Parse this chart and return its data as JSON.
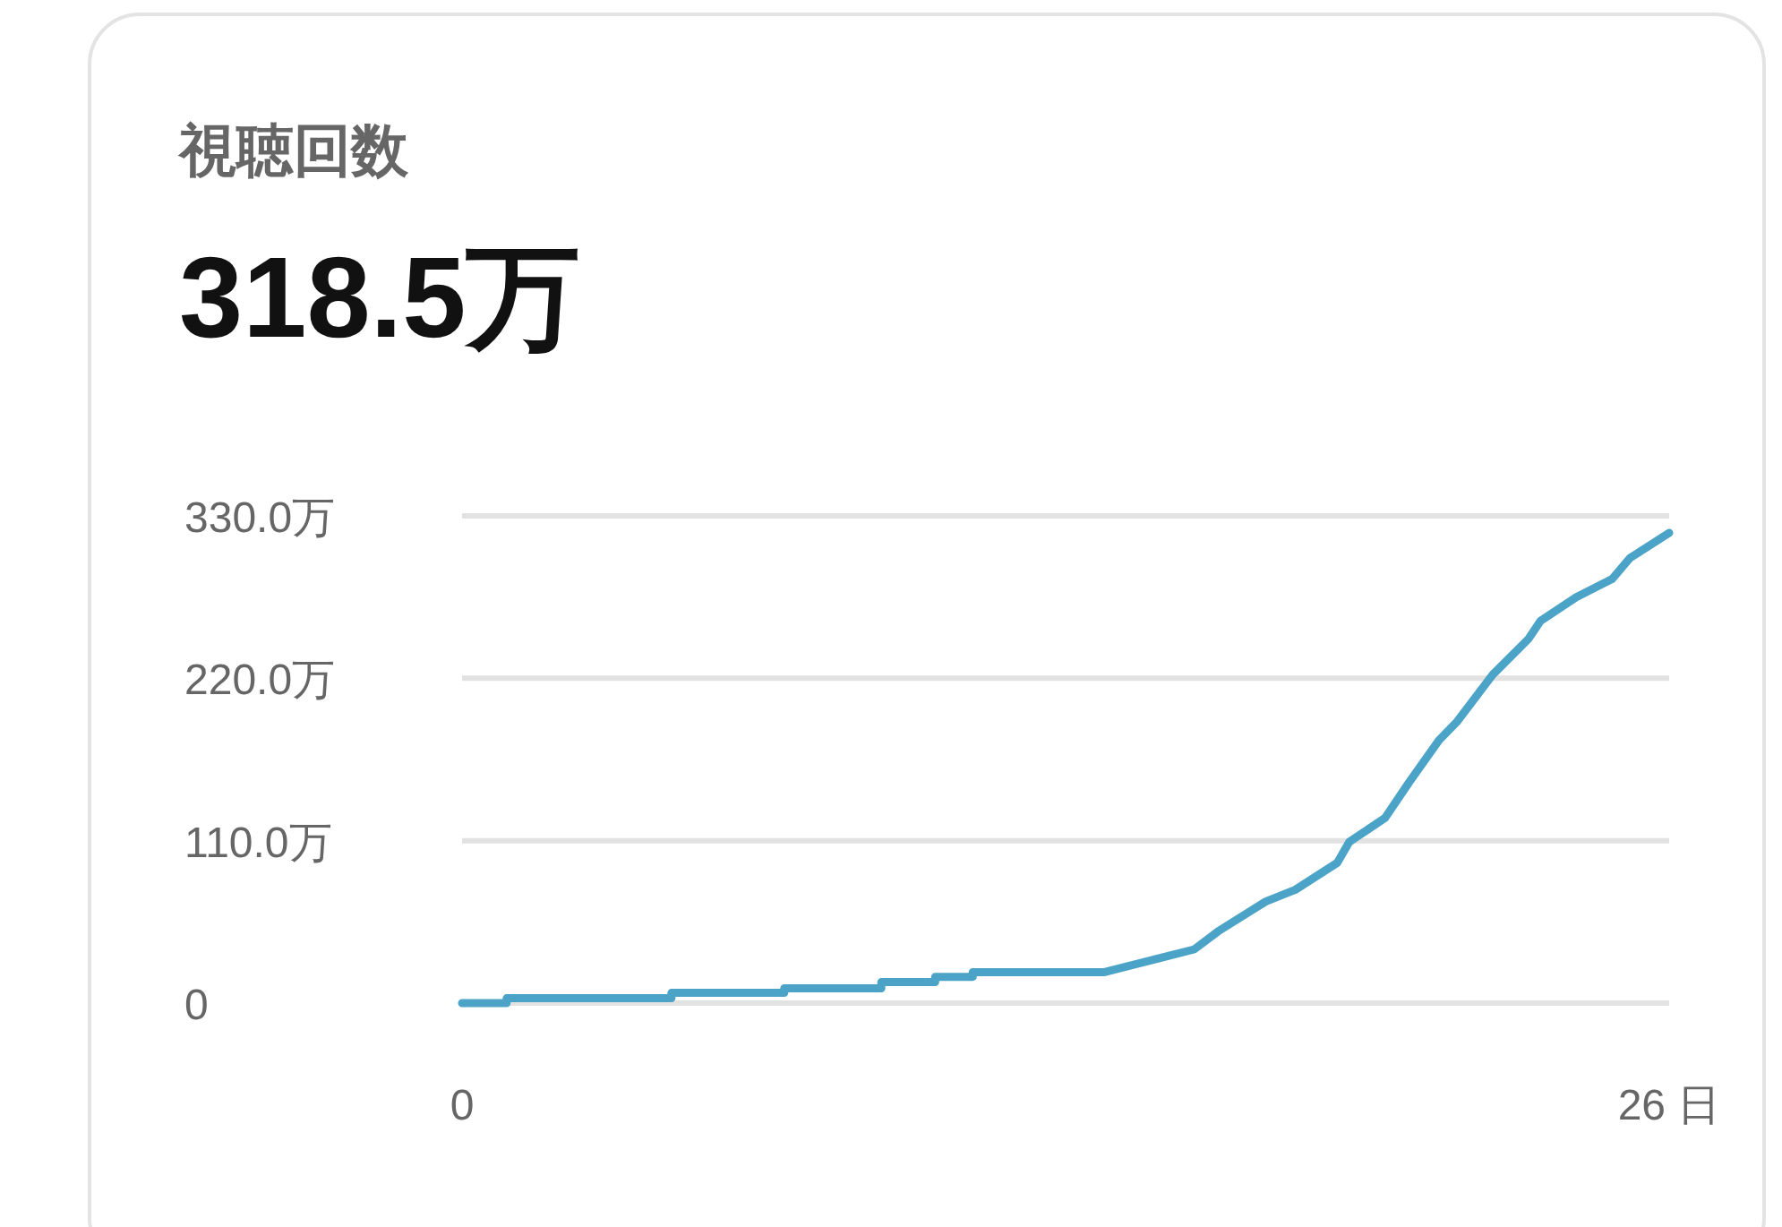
{
  "chart_data": {
    "type": "line",
    "title": "視聴回数",
    "subtitle": "318.5万",
    "x": [
      0,
      0.96,
      0.96,
      4.51,
      4.51,
      6.94,
      6.94,
      9.03,
      9.03,
      10.19,
      10.19,
      11.0,
      11.0,
      13.84,
      15.0,
      15.77,
      16.28,
      17.31,
      17.95,
      18.85,
      19.11,
      19.88,
      20.4,
      21.04,
      21.42,
      22.2,
      22.97,
      23.23,
      24.0,
      24.77,
      25.15,
      26
    ],
    "series": [
      {
        "color": "#4ba3c7",
        "values": [
          0,
          0,
          3.3,
          3.3,
          6.9,
          6.9,
          10,
          10,
          14.2,
          14.2,
          17.8,
          17.8,
          21,
          21,
          30.3,
          36.4,
          48.5,
          68.8,
          76.8,
          95,
          109.2,
          125.4,
          149.6,
          178,
          190.2,
          222.5,
          246.7,
          258.9,
          275,
          287.2,
          301.3,
          318.5
        ]
      }
    ],
    "xlim": [
      0,
      26
    ],
    "xticks": [
      0,
      {
        "value": 26,
        "label": "26 日"
      }
    ],
    "ylim": [
      0,
      330
    ],
    "yticks": [
      0,
      {
        "value": 110,
        "label": "110.0万"
      },
      {
        "value": 220,
        "label": "220.0万"
      },
      {
        "value": 330,
        "label": "330.0万"
      }
    ],
    "grid": "y"
  }
}
